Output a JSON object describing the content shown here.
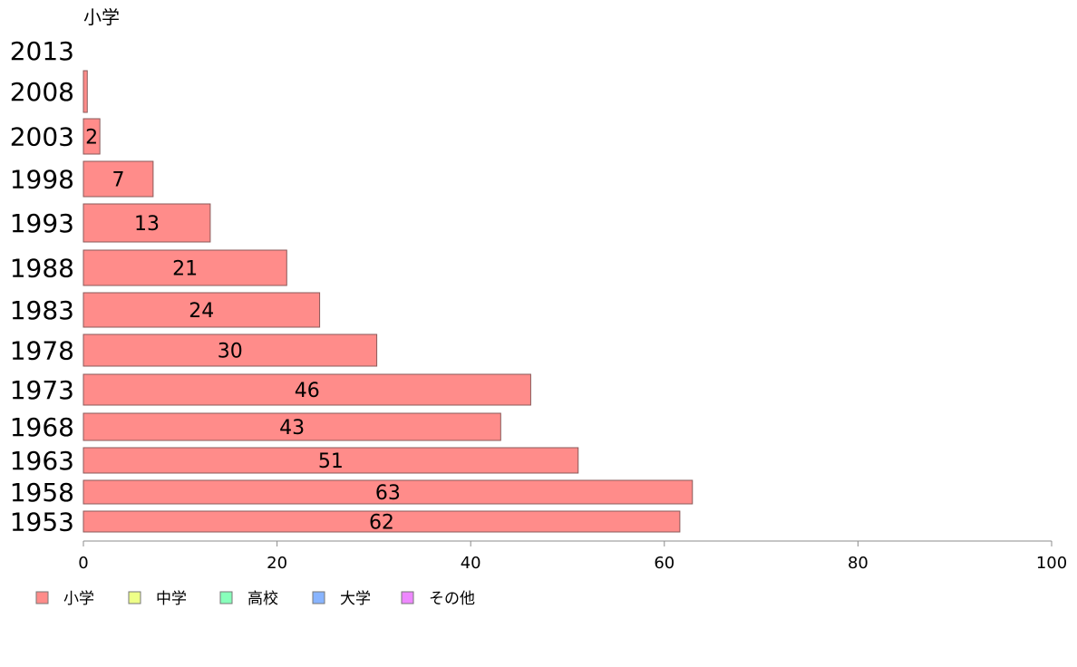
{
  "chart_data": {
    "type": "bar",
    "orientation": "horizontal",
    "title": "小学",
    "xlim": [
      0,
      100
    ],
    "xticks": [
      0,
      20,
      40,
      60,
      80,
      100
    ],
    "grid": false,
    "legend_position": "bottom-left",
    "categories": [
      "2013",
      "2008",
      "2003",
      "1998",
      "1993",
      "1988",
      "1983",
      "1978",
      "1973",
      "1968",
      "1963",
      "1958",
      "1953"
    ],
    "series": [
      {
        "name": "小学",
        "color": "#ff8c8a",
        "values": [
          0,
          0.4,
          1.7,
          7.2,
          13.1,
          21.0,
          24.4,
          30.3,
          46.2,
          43.1,
          51.1,
          62.9,
          61.6
        ],
        "labels": [
          "",
          "",
          "2",
          "7",
          "13",
          "21",
          "24",
          "30",
          "46",
          "43",
          "51",
          "63",
          "62"
        ]
      }
    ],
    "legend": [
      {
        "name": "小学",
        "color": "#ff8c8a"
      },
      {
        "name": "中学",
        "color": "#eeff88"
      },
      {
        "name": "高校",
        "color": "#88ffbb"
      },
      {
        "name": "大学",
        "color": "#88b4ff"
      },
      {
        "name": "その他",
        "color": "#ee88ff"
      }
    ]
  }
}
